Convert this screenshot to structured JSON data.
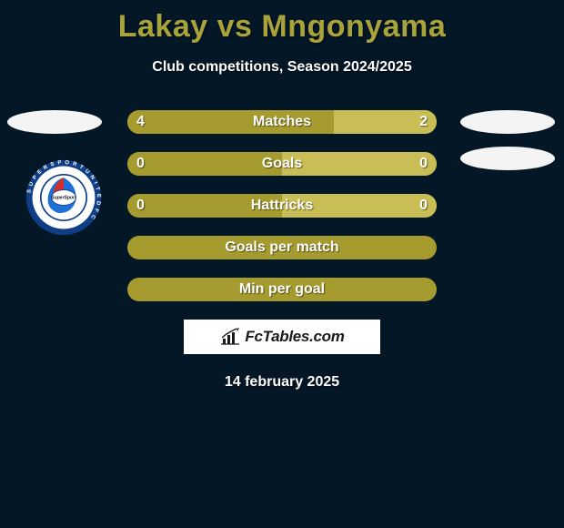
{
  "title": "Lakay vs Mngonyama",
  "subtitle": "Club competitions, Season 2024/2025",
  "background_color": "#041727",
  "title_color": "#a8a33a",
  "side_badge_color": "#f4f4f4",
  "bar_color_primary": "#a59b2f",
  "bar_color_secondary": "#c9bd55",
  "text_color": "#ffffff",
  "brand": "FcTables.com",
  "date": "14 february 2025",
  "logo": {
    "ring_color": "#0f3e87",
    "inner_white": "#ffffff",
    "accent_red": "#d42e2a",
    "accent_blue": "#1e6fd6",
    "text": "SUPERSPORT UNITED FC"
  },
  "rows": [
    {
      "label": "Matches",
      "left": "4",
      "right": "2",
      "left_pct": 66.7,
      "right_pct": 33.3
    },
    {
      "label": "Goals",
      "left": "0",
      "right": "0",
      "left_pct": 50,
      "right_pct": 50
    },
    {
      "label": "Hattricks",
      "left": "0",
      "right": "0",
      "left_pct": 50,
      "right_pct": 50
    },
    {
      "label": "Goals per match",
      "left": "",
      "right": "",
      "left_pct": 100,
      "right_pct": 0
    },
    {
      "label": "Min per goal",
      "left": "",
      "right": "",
      "left_pct": 100,
      "right_pct": 0
    }
  ]
}
